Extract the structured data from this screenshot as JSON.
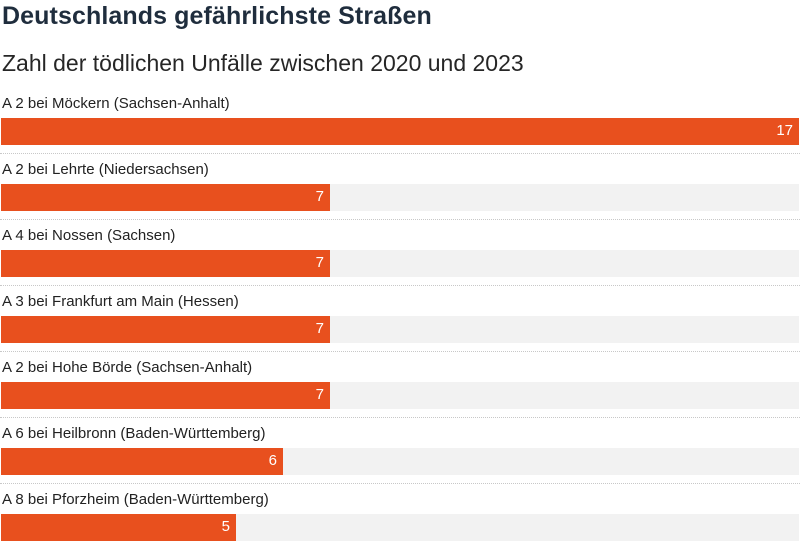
{
  "chart_data": {
    "type": "bar",
    "orientation": "horizontal",
    "title": "Deutschlands gefährlichste Straßen",
    "subtitle": "Zahl der tödlichen Unfälle zwischen 2020 und 2023",
    "categories": [
      "A 2 bei Möckern (Sachsen-Anhalt)",
      "A 2 bei Lehrte (Niedersachsen)",
      "A 4 bei Nossen (Sachsen)",
      "A 3 bei Frankfurt am Main (Hessen)",
      "A 2 bei Hohe Börde (Sachsen-Anhalt)",
      "A 6 bei Heilbronn (Baden-Württemberg)",
      "A 8 bei Pforzheim (Baden-Württemberg)"
    ],
    "values": [
      17,
      7,
      7,
      7,
      7,
      6,
      5
    ],
    "xlim": [
      0,
      17
    ],
    "bar_color": "#e8501e",
    "track_color": "#f2f2f2",
    "title_color": "#1f2d3d"
  }
}
